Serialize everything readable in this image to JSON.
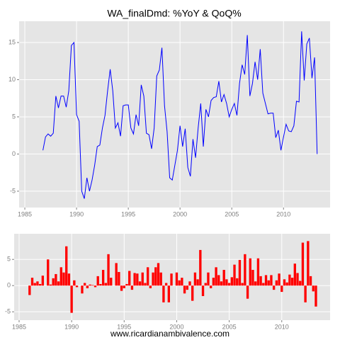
{
  "chart_data": [
    {
      "type": "line",
      "title": "WA_finalDmd: %YoY & QoQ%",
      "color": "#0000ff",
      "xlim": [
        1984.45,
        2014.5
      ],
      "ylim": [
        -7.2,
        17.86
      ],
      "xticks": [
        1985,
        1990,
        1995,
        2000,
        2005,
        2010
      ],
      "yticks": [
        -5,
        0,
        5,
        10,
        15
      ],
      "grid": true,
      "x": [
        1986.75,
        1987,
        1987.25,
        1987.5,
        1987.75,
        1988,
        1988.25,
        1988.5,
        1988.75,
        1989,
        1989.25,
        1989.5,
        1989.75,
        1990,
        1990.25,
        1990.5,
        1990.75,
        1991,
        1991.25,
        1991.5,
        1991.75,
        1992,
        1992.25,
        1992.5,
        1992.75,
        1993,
        1993.25,
        1993.5,
        1993.75,
        1994,
        1994.25,
        1994.5,
        1994.75,
        1995,
        1995.25,
        1995.5,
        1995.75,
        1996,
        1996.25,
        1996.5,
        1996.75,
        1997,
        1997.25,
        1997.5,
        1997.75,
        1998,
        1998.25,
        1998.5,
        1998.75,
        1999,
        1999.25,
        1999.5,
        1999.75,
        2000,
        2000.25,
        2000.5,
        2000.75,
        2001,
        2001.25,
        2001.5,
        2001.75,
        2002,
        2002.25,
        2002.5,
        2002.75,
        2003,
        2003.25,
        2003.5,
        2003.75,
        2004,
        2004.25,
        2004.5,
        2004.75,
        2005,
        2005.25,
        2005.5,
        2005.75,
        2006,
        2006.25,
        2006.5,
        2006.75,
        2007,
        2007.25,
        2007.5,
        2007.75,
        2008,
        2008.25,
        2008.5,
        2008.75,
        2009,
        2009.25,
        2009.5,
        2009.75,
        2010,
        2010.25,
        2010.5,
        2010.75,
        2011,
        2011.25,
        2011.5,
        2011.75,
        2012,
        2012.25,
        2012.5,
        2012.75,
        2013,
        2013.25
      ],
      "values": [
        0.5,
        2.3,
        2.7,
        2.4,
        2.8,
        7.8,
        6.2,
        7.8,
        7.8,
        6.3,
        8.5,
        14.6,
        15.0,
        5.3,
        4.4,
        -5.0,
        -6.0,
        -3.2,
        -5.0,
        -3.5,
        -1.5,
        1.0,
        1.2,
        3.5,
        5.2,
        8.5,
        11.4,
        8.5,
        3.5,
        4.2,
        2.4,
        6.5,
        6.6,
        6.6,
        3.5,
        2.7,
        5.3,
        3.8,
        9.3,
        7.8,
        2.8,
        2.6,
        0.7,
        3.5,
        10.5,
        11.3,
        14.3,
        6.5,
        3.0,
        -3.2,
        -3.5,
        -1.5,
        0.5,
        3.8,
        1.0,
        3.4,
        -1.8,
        -3.0,
        2.0,
        -0.5,
        3.5,
        6.8,
        1.0,
        6.0,
        5.0,
        7.2,
        7.6,
        7.7,
        9.8,
        7.0,
        8.0,
        6.8,
        5.0,
        6.0,
        6.8,
        5.2,
        9.5,
        12.0,
        10.7,
        16.0,
        7.8,
        9.5,
        12.4,
        10.0,
        14.1,
        8.2,
        6.8,
        5.4,
        5.5,
        5.5,
        2.2,
        3.2,
        0.5,
        2.3,
        4.0,
        3.1,
        3.0,
        3.8,
        7.1,
        7.0,
        16.5,
        9.9,
        14.8,
        15.6,
        10.2,
        13.0,
        0.0
      ]
    },
    {
      "type": "bar",
      "color": "#ff0000",
      "xlim": [
        1984.53,
        2014.6
      ],
      "ylim": [
        -6.6,
        9.9
      ],
      "xticks": [
        1985,
        1990,
        1995,
        2000,
        2005,
        2010
      ],
      "yticks": [
        -5,
        0,
        5
      ],
      "grid": true,
      "x": [
        1986,
        1986.25,
        1986.5,
        1986.75,
        1987,
        1987.25,
        1987.5,
        1987.75,
        1988,
        1988.25,
        1988.5,
        1988.75,
        1989,
        1989.25,
        1989.5,
        1989.75,
        1990,
        1990.25,
        1990.5,
        1990.75,
        1991,
        1991.25,
        1991.5,
        1991.75,
        1992,
        1992.25,
        1992.5,
        1992.75,
        1993,
        1993.25,
        1993.5,
        1993.75,
        1994,
        1994.25,
        1994.5,
        1994.75,
        1995,
        1995.25,
        1995.5,
        1995.75,
        1996,
        1996.25,
        1996.5,
        1996.75,
        1997,
        1997.25,
        1997.5,
        1997.75,
        1998,
        1998.25,
        1998.5,
        1998.75,
        1999,
        1999.25,
        1999.5,
        1999.75,
        2000,
        2000.25,
        2000.5,
        2000.75,
        2001,
        2001.25,
        2001.5,
        2001.75,
        2002,
        2002.25,
        2002.5,
        2002.75,
        2003,
        2003.25,
        2003.5,
        2003.75,
        2004,
        2004.25,
        2004.5,
        2004.75,
        2005,
        2005.25,
        2005.5,
        2005.75,
        2006,
        2006.25,
        2006.5,
        2006.75,
        2007,
        2007.25,
        2007.5,
        2007.75,
        2008,
        2008.25,
        2008.5,
        2008.75,
        2009,
        2009.25,
        2009.5,
        2009.75,
        2010,
        2010.25,
        2010.5,
        2010.75,
        2011,
        2011.25,
        2011.5,
        2011.75,
        2012,
        2012.25,
        2012.5,
        2012.75,
        2013,
        2013.25
      ],
      "values": [
        -1.8,
        1.5,
        0.5,
        0.8,
        0.3,
        1.9,
        0.0,
        5.0,
        0.2,
        1.4,
        2.2,
        0.8,
        3.5,
        2.5,
        7.5,
        2.3,
        -5.2,
        1.0,
        -0.3,
        0.0,
        -1.5,
        0.5,
        -0.5,
        0.2,
        0.1,
        -0.3,
        1.8,
        0.3,
        3.0,
        0.5,
        6.0,
        1.5,
        0.0,
        4.3,
        2.6,
        -1.0,
        -0.5,
        0.3,
        2.8,
        -0.8,
        2.4,
        2.3,
        0.8,
        2.5,
        0.5,
        3.5,
        -0.5,
        2.5,
        3.5,
        4.3,
        2.5,
        -3.2,
        0.5,
        -3.2,
        2.3,
        0.0,
        2.5,
        1.0,
        1.5,
        -1.5,
        -0.8,
        0.8,
        -2.9,
        2.5,
        1.2,
        6.8,
        -2.0,
        0.5,
        2.5,
        -0.5,
        1.5,
        3.5,
        2.0,
        0.8,
        3.0,
        1.2,
        0.5,
        1.6,
        4.0,
        1.4,
        4.9,
        0.5,
        6.0,
        -2.5,
        5.2,
        3.0,
        0.8,
        5.2,
        1.8,
        0.5,
        2.0,
        1.0,
        2.0,
        -0.8,
        1.0,
        2.3,
        -1.2,
        1.2,
        0.6,
        2.1,
        1.5,
        4.2,
        2.4,
        0.9,
        8.2,
        -3.2,
        8.5,
        1.8,
        -1.1,
        -4.0
      ]
    }
  ],
  "footer": "www.ricardianambivalence.com"
}
